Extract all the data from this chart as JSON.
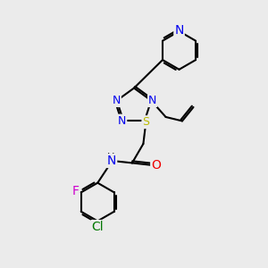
{
  "bg_color": "#ebebeb",
  "bond_color": "#000000",
  "bond_width": 1.5,
  "atom_colors": {
    "N": "#0000ee",
    "S": "#bbbb00",
    "O": "#ee0000",
    "F": "#cc00cc",
    "Cl": "#007700",
    "C": "#000000",
    "H": "#000000"
  },
  "font_size": 9,
  "figsize": [
    3.0,
    3.0
  ],
  "dpi": 100
}
